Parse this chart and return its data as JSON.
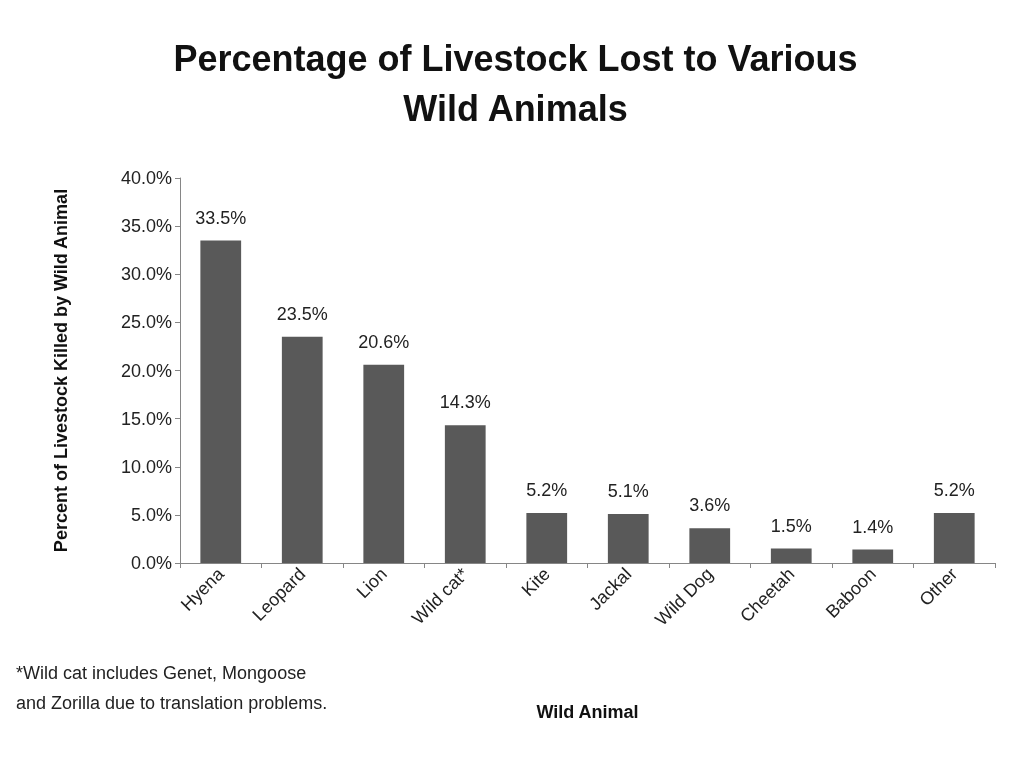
{
  "chart_data": {
    "type": "bar",
    "title": "Percentage of Livestock Lost to Various\nWild Animals",
    "xlabel": "Wild Animal",
    "ylabel": "Percent of Livestock Killed by Wild Animal",
    "categories": [
      "Hyena",
      "Leopard",
      "Lion",
      "Wild cat*",
      "Kite",
      "Jackal",
      "Wild Dog",
      "Cheetah",
      "Baboon",
      "Other"
    ],
    "values": [
      33.5,
      23.5,
      20.6,
      14.3,
      5.2,
      5.1,
      3.6,
      1.5,
      1.4,
      5.2
    ],
    "value_labels": [
      "33.5%",
      "23.5%",
      "20.6%",
      "14.3%",
      "5.2%",
      "5.1%",
      "3.6%",
      "1.5%",
      "1.4%",
      "5.2%"
    ],
    "color": "#595959",
    "ylim": [
      0,
      40
    ],
    "yticks": [
      {
        "value": 0,
        "label": "0.0%"
      },
      {
        "value": 5,
        "label": "5.0%"
      },
      {
        "value": 10,
        "label": "10.0%"
      },
      {
        "value": 15,
        "label": "15.0%"
      },
      {
        "value": 20,
        "label": "20.0%"
      },
      {
        "value": 25,
        "label": "25.0%"
      },
      {
        "value": 30,
        "label": "30.0%"
      },
      {
        "value": 35,
        "label": "35.0%"
      },
      {
        "value": 40,
        "label": "40.0%"
      }
    ],
    "grid": false,
    "annotations": [
      "*Wild cat includes Genet, Mongoose\nand Zorilla due to translation problems."
    ]
  }
}
